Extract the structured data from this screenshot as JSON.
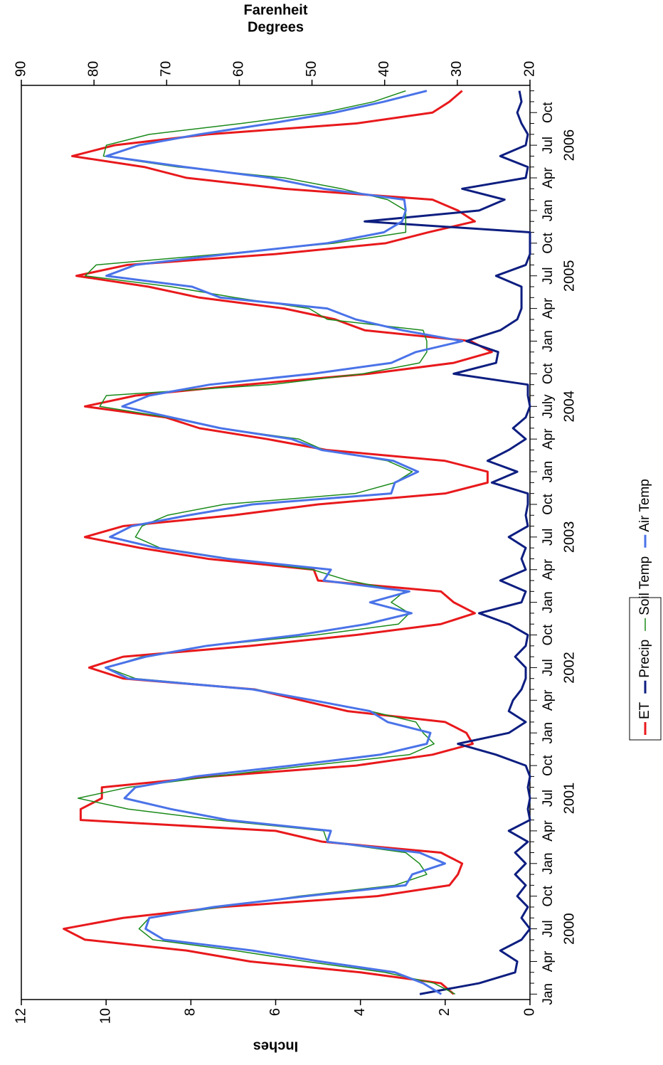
{
  "chart_data": {
    "type": "line",
    "y_title": "Inches",
    "y2_title": [
      "Degrees",
      "Farenheit"
    ],
    "categories": [
      "Jan",
      null,
      null,
      "Apr",
      null,
      null,
      "Jul",
      null,
      null,
      "Oct",
      null,
      null,
      "Jan",
      null,
      null,
      "Apr",
      null,
      null,
      "Jul",
      null,
      null,
      "Oct",
      null,
      null,
      "Jan",
      null,
      null,
      "Apr",
      null,
      null,
      "Jul",
      null,
      null,
      "Oct",
      null,
      null,
      "Jan",
      null,
      null,
      "Apr",
      null,
      null,
      "Jul",
      null,
      null,
      "Oct",
      null,
      null,
      "Jan",
      null,
      null,
      "Apr",
      null,
      null,
      "July",
      null,
      null,
      "Oct",
      null,
      null,
      "Jan",
      null,
      null,
      "Apr",
      null,
      null,
      "Jul",
      null,
      null,
      "Oct",
      null,
      null,
      "Jan",
      null,
      null,
      "Apr",
      null,
      null,
      "Jul",
      null,
      null,
      "Oct",
      null,
      null
    ],
    "years": [
      "2000",
      "2001",
      "2002",
      "2003",
      "2004",
      "2005",
      "2006"
    ],
    "ylim": [
      0,
      12
    ],
    "yticks": [
      0,
      2,
      4,
      6,
      8,
      10,
      12
    ],
    "y2lim": [
      20,
      90
    ],
    "y2ticks": [
      20,
      30,
      40,
      50,
      60,
      70,
      80,
      90
    ],
    "series": [
      {
        "name": "ET",
        "color": "#e8191c",
        "values": [
          1.8,
          2.1,
          4.0,
          6.6,
          8.1,
          10.5,
          11.0,
          9.6,
          7.3,
          3.6,
          1.9,
          1.7,
          1.6,
          2.1,
          4.9,
          6.0,
          10.6,
          10.6,
          10.1,
          10.1,
          7.5,
          4.1,
          2.3,
          1.35,
          1.5,
          2.0,
          4.3,
          5.4,
          6.5,
          9.6,
          10.4,
          9.6,
          6.6,
          4.1,
          2.1,
          1.3,
          1.8,
          2.1,
          5.0,
          5.1,
          7.6,
          9.2,
          10.5,
          9.6,
          7.0,
          5.0,
          2.0,
          1.0,
          1.0,
          2.0,
          4.8,
          6.2,
          7.8,
          8.6,
          10.5,
          9.3,
          6.7,
          3.8,
          1.8,
          0.9,
          1.4,
          3.9,
          4.6,
          5.8,
          7.8,
          9.0,
          10.7,
          9.5,
          6.0,
          3.4,
          2.4,
          1.3,
          1.7,
          2.3,
          5.8,
          8.1,
          9.1,
          10.8,
          9.8,
          7.6,
          4.1,
          2.3,
          1.9,
          1.6
        ]
      },
      {
        "name": "Precip",
        "color": "#0d1e80",
        "values": [
          2.6,
          1.2,
          0.35,
          0.3,
          0.7,
          0.2,
          0.0,
          0.2,
          0.05,
          0.3,
          0.1,
          0.35,
          0.1,
          0.35,
          0.05,
          0.5,
          0.0,
          0.05,
          0.0,
          0.05,
          0.0,
          0.1,
          0.8,
          1.7,
          0.5,
          0.1,
          0.5,
          0.4,
          0.2,
          0.1,
          0.1,
          0.35,
          0.1,
          0.05,
          0.5,
          1.2,
          0.2,
          0.1,
          0.7,
          0.1,
          0.2,
          0.1,
          0.5,
          0.05,
          0.1,
          0.05,
          0.05,
          0.9,
          0.3,
          1.0,
          0.5,
          0.1,
          0.4,
          0.1,
          0.0,
          0.05,
          0.05,
          1.8,
          0.8,
          0.75,
          1.5,
          0.7,
          0.3,
          0.2,
          0.2,
          0.2,
          0.8,
          0.1,
          0.0,
          0.0,
          0.0,
          3.9,
          1.2,
          0.6,
          1.6,
          0.1,
          0.05,
          0.7,
          0.1,
          0.05,
          0.2,
          0.3,
          0.2,
          0.25
        ]
      },
      {
        "name": "Soil Temp",
        "color": "#1a8a1a",
        "axis": "y2",
        "values": [
          30.3,
          33.2,
          40.0,
          50.8,
          60.6,
          71.9,
          73.8,
          72.4,
          62.6,
          51.8,
          38.6,
          34.2,
          35.2,
          37.1,
          47.9,
          48.4,
          63.1,
          75.3,
          82.2,
          75.3,
          63.6,
          50.4,
          36.6,
          33.2,
          34.7,
          35.7,
          42.0,
          49.9,
          57.7,
          74.3,
          78.3,
          73.4,
          64.5,
          49.4,
          38.1,
          36.6,
          39.1,
          37.3,
          45.0,
          49.9,
          61.1,
          70.9,
          74.3,
          73.4,
          69.9,
          62.1,
          44.0,
          38.6,
          36.2,
          39.6,
          48.4,
          51.8,
          62.6,
          69.9,
          79.2,
          78.3,
          55.7,
          43.0,
          35.2,
          34.2,
          34.2,
          34.7,
          47.9,
          50.4,
          60.6,
          69.4,
          81.2,
          79.7,
          62.6,
          46.9,
          37.1,
          37.1,
          37.1,
          39.6,
          45.9,
          53.8,
          68.5,
          78.7,
          78.3,
          72.4,
          59.7,
          48.4,
          41.5,
          37.1
        ]
      },
      {
        "name": "Air Temp",
        "color": "#4a73e8",
        "axis": "y2",
        "values": [
          32.2,
          34.7,
          38.6,
          48.9,
          58.2,
          70.4,
          72.9,
          72.4,
          63.6,
          50.8,
          37.1,
          36.2,
          31.7,
          35.2,
          47.9,
          47.4,
          61.6,
          69.4,
          75.8,
          74.3,
          66.0,
          52.8,
          40.6,
          34.2,
          33.7,
          39.6,
          42.0,
          49.9,
          58.2,
          75.3,
          78.4,
          72.9,
          64.5,
          51.8,
          42.5,
          36.3,
          42.0,
          36.6,
          48.4,
          47.4,
          61.6,
          71.4,
          77.8,
          74.8,
          67.0,
          58.2,
          39.1,
          38.6,
          35.4,
          38.8,
          48.7,
          52.8,
          62.6,
          69.4,
          76.1,
          72.4,
          64.1,
          49.9,
          39.1,
          35.7,
          29.3,
          37.6,
          44.0,
          47.9,
          62.6,
          66.5,
          78.3,
          74.3,
          61.6,
          47.9,
          40.1,
          37.6,
          37.1,
          37.3,
          48.4,
          55.7,
          67.5,
          78.3,
          73.8,
          65.5,
          55.7,
          46.9,
          40.1,
          34.2
        ]
      }
    ]
  }
}
